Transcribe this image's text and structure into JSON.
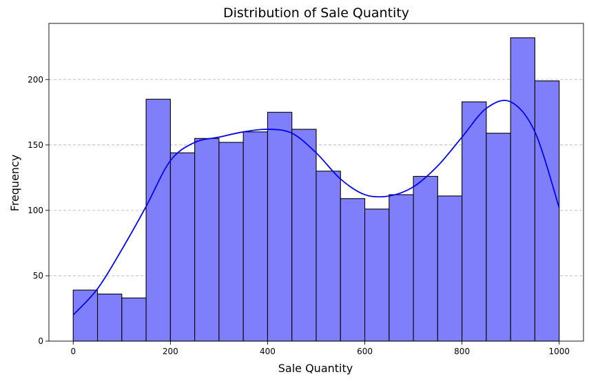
{
  "chart_data": {
    "type": "bar",
    "subtype": "histogram",
    "title": "Distribution of Sale Quantity",
    "xlabel": "Sale Quantity",
    "ylabel": "Frequency",
    "xlim": [
      -50,
      1050
    ],
    "ylim": [
      0,
      243
    ],
    "grid": "horizontal-dashed",
    "bar_color": "#7f7ffb",
    "kde_color": "#0000ee",
    "bin_width": 50,
    "bin_edges": [
      0,
      50,
      100,
      150,
      200,
      250,
      300,
      350,
      400,
      450,
      500,
      550,
      600,
      650,
      700,
      750,
      800,
      850,
      900,
      950,
      1000
    ],
    "values": [
      39,
      36,
      33,
      185,
      144,
      155,
      152,
      160,
      175,
      162,
      130,
      109,
      101,
      112,
      126,
      111,
      183,
      159,
      232,
      199
    ],
    "x_ticks": [
      0,
      200,
      400,
      600,
      800,
      1000
    ],
    "x_tick_labels": [
      "0",
      "200",
      "400",
      "600",
      "800",
      "1000"
    ],
    "y_ticks": [
      0,
      50,
      100,
      150,
      200
    ],
    "y_tick_labels": [
      "0",
      "50",
      "100",
      "150",
      "200"
    ],
    "kde_x": [
      0,
      50,
      100,
      150,
      200,
      250,
      300,
      350,
      400,
      450,
      500,
      550,
      600,
      650,
      700,
      750,
      800,
      850,
      900,
      950,
      1000
    ],
    "kde_y": [
      20,
      40,
      70,
      103,
      138,
      152,
      156,
      160,
      162,
      159,
      144,
      124,
      112,
      111,
      118,
      134,
      156,
      178,
      183,
      160,
      102
    ]
  }
}
